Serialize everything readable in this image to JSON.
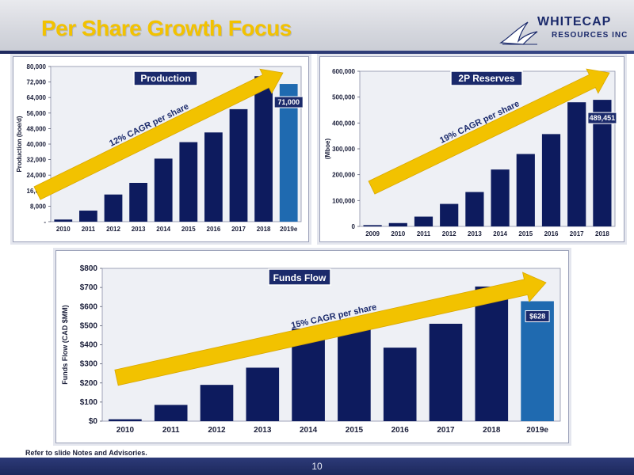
{
  "header": {
    "title": "Per Share Growth Focus",
    "logo_line1": "WHITECAP",
    "logo_line2": "RESOURCES INC"
  },
  "footer": {
    "note": "Refer to slide Notes and Advisories.",
    "page_number": "10"
  },
  "colors": {
    "bar": "#0d1b5e",
    "bar_highlight": "#1f6ab0",
    "arrow": "#f2c200",
    "title_box": "#1b2a6b"
  },
  "chart_data": [
    {
      "type": "bar",
      "title": "Production",
      "ylabel": "Production (boe/d)",
      "categories": [
        "2010",
        "2011",
        "2012",
        "2013",
        "2014",
        "2015",
        "2016",
        "2017",
        "2018",
        "2019e"
      ],
      "values": [
        1100,
        5700,
        14000,
        20000,
        32500,
        41000,
        46000,
        58000,
        75000,
        71000
      ],
      "ylim": [
        0,
        80000
      ],
      "yticks": [
        0,
        8000,
        16000,
        24000,
        32000,
        40000,
        48000,
        56000,
        64000,
        72000,
        80000
      ],
      "ytick_labels": [
        "-",
        "8,000",
        "16,000",
        "24,000",
        "32,000",
        "40,000",
        "48,000",
        "56,000",
        "64,000",
        "72,000",
        "80,000"
      ],
      "highlight_index": 9,
      "callout": "71,000",
      "arrow_label": "12% CAGR per share",
      "grid": false
    },
    {
      "type": "bar",
      "title": "2P Reserves",
      "ylabel": "(Mboe)",
      "categories": [
        "2009",
        "2010",
        "2011",
        "2012",
        "2013",
        "2014",
        "2015",
        "2016",
        "2017",
        "2018"
      ],
      "values": [
        5000,
        13000,
        38000,
        87000,
        133000,
        220000,
        280000,
        357000,
        480000,
        489451
      ],
      "ylim": [
        0,
        600000
      ],
      "yticks": [
        0,
        100000,
        200000,
        300000,
        400000,
        500000,
        600000
      ],
      "ytick_labels": [
        "0",
        "100,000",
        "200,000",
        "300,000",
        "400,000",
        "500,000",
        "600,000"
      ],
      "highlight_index": -1,
      "callout": "489,451",
      "arrow_label": "19% CAGR per share",
      "grid": false
    },
    {
      "type": "bar",
      "title": "Funds Flow",
      "ylabel": "Funds Flow (CAD $MM)",
      "categories": [
        "2010",
        "2011",
        "2012",
        "2013",
        "2014",
        "2015",
        "2016",
        "2017",
        "2018",
        "2019e"
      ],
      "values": [
        10,
        85,
        190,
        280,
        485,
        490,
        385,
        510,
        705,
        628
      ],
      "ylim": [
        0,
        800
      ],
      "yticks": [
        0,
        100,
        200,
        300,
        400,
        500,
        600,
        700,
        800
      ],
      "ytick_labels": [
        "$0",
        "$100",
        "$200",
        "$300",
        "$400",
        "$500",
        "$600",
        "$700",
        "$800"
      ],
      "highlight_index": 9,
      "callout": "$628",
      "arrow_label": "15% CAGR per share",
      "grid": false
    }
  ]
}
